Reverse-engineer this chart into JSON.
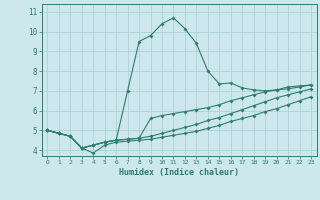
{
  "xlabel": "Humidex (Indice chaleur)",
  "xlim": [
    -0.5,
    23.5
  ],
  "ylim": [
    3.7,
    11.4
  ],
  "xticks": [
    0,
    1,
    2,
    3,
    4,
    5,
    6,
    7,
    8,
    9,
    10,
    11,
    12,
    13,
    14,
    15,
    16,
    17,
    18,
    19,
    20,
    21,
    22,
    23
  ],
  "yticks": [
    4,
    5,
    6,
    7,
    8,
    9,
    10,
    11
  ],
  "line_color": "#2e7d6e",
  "bg_color": "#cce8ec",
  "grid_color": "#a8cdd4",
  "lines": [
    [
      5.0,
      4.85,
      4.7,
      4.1,
      3.85,
      4.25,
      4.4,
      4.45,
      4.5,
      4.55,
      4.65,
      4.75,
      4.85,
      4.95,
      5.1,
      5.25,
      5.45,
      5.6,
      5.75,
      5.95,
      6.1,
      6.3,
      6.5,
      6.7
    ],
    [
      5.0,
      4.85,
      4.7,
      4.1,
      4.25,
      4.4,
      4.5,
      7.0,
      9.5,
      9.8,
      10.4,
      10.7,
      10.15,
      9.4,
      8.0,
      7.35,
      7.4,
      7.15,
      7.05,
      7.0,
      7.05,
      7.2,
      7.25,
      7.3
    ],
    [
      5.0,
      4.85,
      4.7,
      4.1,
      4.25,
      4.4,
      4.5,
      4.55,
      4.6,
      5.6,
      5.75,
      5.85,
      5.95,
      6.05,
      6.15,
      6.3,
      6.5,
      6.65,
      6.8,
      6.95,
      7.05,
      7.1,
      7.2,
      7.3
    ],
    [
      5.0,
      4.85,
      4.7,
      4.1,
      4.25,
      4.4,
      4.5,
      4.55,
      4.6,
      4.7,
      4.85,
      5.0,
      5.15,
      5.3,
      5.5,
      5.65,
      5.85,
      6.05,
      6.25,
      6.45,
      6.65,
      6.8,
      6.95,
      7.1
    ]
  ]
}
